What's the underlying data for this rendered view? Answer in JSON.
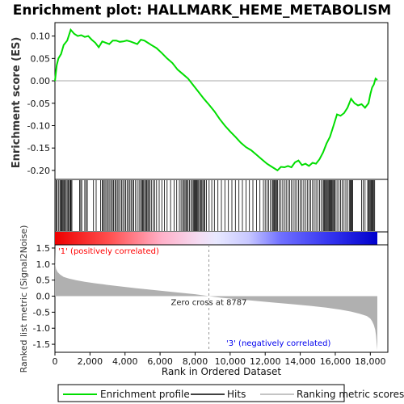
{
  "chart_data": {
    "type": "line",
    "title": "Enrichment plot: HALLMARK_HEME_METABOLISM",
    "es_panel": {
      "ylabel": "Enrichment score (ES)",
      "ylim": [
        -0.22,
        0.13
      ],
      "yticks": [
        0.1,
        0.05,
        0.0,
        -0.05,
        -0.1,
        -0.15,
        -0.2
      ],
      "ytick_labels": [
        "0.10",
        "0.05",
        "0.00",
        "-0.05",
        "-0.10",
        "-0.15",
        "-0.20"
      ],
      "line_color": "#00dd00",
      "series": [
        {
          "name": "Enrichment profile",
          "x": [
            0,
            100,
            200,
            350,
            500,
            700,
            900,
            1100,
            1300,
            1500,
            1700,
            1900,
            2100,
            2300,
            2500,
            2700,
            2900,
            3100,
            3300,
            3500,
            3700,
            3900,
            4100,
            4300,
            4500,
            4700,
            4900,
            5100,
            5300,
            5500,
            5800,
            6100,
            6400,
            6700,
            7000,
            7300,
            7600,
            7900,
            8200,
            8500,
            8787,
            9100,
            9400,
            9700,
            10000,
            10300,
            10600,
            10900,
            11200,
            11500,
            11800,
            12100,
            12300,
            12500,
            12700,
            12900,
            13100,
            13300,
            13500,
            13700,
            13900,
            14100,
            14300,
            14500,
            14700,
            14900,
            15100,
            15300,
            15500,
            15700,
            15900,
            16100,
            16300,
            16500,
            16700,
            16900,
            17100,
            17300,
            17500,
            17700,
            17900,
            18000,
            18100,
            18200,
            18300,
            18400
          ],
          "y": [
            0.0,
            0.035,
            0.05,
            0.06,
            0.08,
            0.09,
            0.114,
            0.105,
            0.1,
            0.102,
            0.098,
            0.1,
            0.092,
            0.085,
            0.075,
            0.088,
            0.085,
            0.082,
            0.09,
            0.09,
            0.087,
            0.088,
            0.09,
            0.088,
            0.085,
            0.082,
            0.092,
            0.09,
            0.085,
            0.08,
            0.073,
            0.062,
            0.05,
            0.04,
            0.025,
            0.015,
            0.005,
            -0.01,
            -0.025,
            -0.04,
            -0.053,
            -0.068,
            -0.085,
            -0.1,
            -0.113,
            -0.125,
            -0.138,
            -0.148,
            -0.155,
            -0.165,
            -0.175,
            -0.185,
            -0.19,
            -0.195,
            -0.2,
            -0.192,
            -0.193,
            -0.19,
            -0.193,
            -0.182,
            -0.178,
            -0.188,
            -0.185,
            -0.19,
            -0.183,
            -0.185,
            -0.175,
            -0.16,
            -0.14,
            -0.125,
            -0.1,
            -0.075,
            -0.078,
            -0.072,
            -0.06,
            -0.04,
            -0.05,
            -0.055,
            -0.052,
            -0.06,
            -0.05,
            -0.03,
            -0.015,
            -0.008,
            0.005,
            0.002
          ]
        }
      ]
    },
    "hits_panel": {
      "legend_label": "Hits",
      "hit_ranks": [
        60,
        120,
        200,
        280,
        330,
        380,
        420,
        470,
        520,
        570,
        640,
        700,
        760,
        820,
        880,
        920,
        970,
        1400,
        1470,
        1530,
        1700,
        1780,
        1850,
        2200,
        2350,
        2600,
        2700,
        2760,
        2820,
        2900,
        2980,
        3050,
        3130,
        3200,
        3280,
        3350,
        3420,
        3480,
        3560,
        3640,
        3720,
        3800,
        3880,
        3960,
        4040,
        4120,
        4200,
        4280,
        4350,
        4430,
        4500,
        4600,
        4700,
        4800,
        4880,
        4960,
        5000,
        5060,
        5120,
        5180,
        5240,
        5300,
        5350,
        5420,
        5500,
        5600,
        5700,
        5800,
        5950,
        6100,
        6250,
        6400,
        6600,
        6800,
        6950,
        7100,
        7200,
        7280,
        7350,
        7420,
        7480,
        7530,
        7600,
        7680,
        7760,
        7840,
        7900,
        7950,
        8000,
        8050,
        8100,
        8150,
        8200,
        8260,
        8320,
        8380,
        8440,
        8500,
        8560,
        8640,
        8800,
        8950,
        9100,
        9300,
        9500,
        9700,
        9900,
        10100,
        10300,
        10500,
        10700,
        10900,
        11100,
        11300,
        11500,
        11700,
        11900,
        12000,
        12100,
        12200,
        12300,
        12400,
        12450,
        12500,
        12550,
        12600,
        12650,
        12700,
        12800,
        12900,
        13000,
        13100,
        13200,
        13300,
        13400,
        13500,
        13600,
        13700,
        13800,
        13900,
        14000,
        14100,
        14200,
        14300,
        14400,
        14500,
        14600,
        14700,
        14800,
        14900,
        15000,
        15100,
        15200,
        15300,
        15350,
        15400,
        15450,
        15500,
        15550,
        15600,
        15650,
        15700,
        15750,
        15800,
        15850,
        15900,
        15950,
        16000,
        16100,
        16200,
        16300,
        16400,
        16500,
        16600,
        16700,
        16800,
        16850,
        16900,
        16950,
        17000,
        17500,
        17600,
        17700,
        17850,
        17900,
        17950,
        18000,
        18050,
        18100,
        18150,
        18200,
        18250
      ]
    },
    "metric_panel": {
      "ylabel": "Ranked list metric (Signal2Noise)",
      "ylim": [
        -1.75,
        1.6
      ],
      "yticks": [
        1.5,
        1.0,
        0.5,
        0.0,
        -0.5,
        -1.0,
        -1.5
      ],
      "ytick_labels": [
        "1.5",
        "1.0",
        "0.5",
        "0.0",
        "-0.5",
        "-1.0",
        "-1.5"
      ],
      "fill_color": "#b0b0b0",
      "series": [
        {
          "name": "Ranking metric scores",
          "x": [
            0,
            20,
            60,
            150,
            300,
            500,
            800,
            1200,
            1700,
            2300,
            3000,
            3800,
            4600,
            5500,
            6400,
            7300,
            8000,
            8787,
            9500,
            10500,
            11500,
            12500,
            13500,
            14500,
            15500,
            16300,
            16900,
            17400,
            17800,
            18000,
            18100,
            18200,
            18280,
            18330,
            18370,
            18400
          ],
          "y": [
            1.5,
            1.0,
            0.85,
            0.75,
            0.67,
            0.6,
            0.55,
            0.5,
            0.45,
            0.4,
            0.35,
            0.3,
            0.25,
            0.2,
            0.15,
            0.1,
            0.06,
            0.0,
            -0.05,
            -0.1,
            -0.15,
            -0.2,
            -0.25,
            -0.3,
            -0.36,
            -0.42,
            -0.48,
            -0.55,
            -0.62,
            -0.7,
            -0.78,
            -0.9,
            -1.05,
            -1.25,
            -1.5,
            -1.68
          ]
        }
      ],
      "zero_cross_label": "Zero cross at 8787",
      "zero_cross_rank": 8787,
      "pos_label": "'1' (positively correlated)",
      "neg_label": "'3' (negatively correlated)",
      "pos_color": "#ff0000",
      "neg_color": "#0000ee"
    },
    "xaxis": {
      "xlabel": "Rank in Ordered Dataset",
      "xlim": [
        0,
        19000
      ],
      "xticks": [
        0,
        2000,
        4000,
        6000,
        8000,
        10000,
        12000,
        14000,
        16000,
        18000
      ],
      "xtick_labels": [
        "0",
        "2,000",
        "4,000",
        "6,000",
        "8,000",
        "10,000",
        "12,000",
        "14,000",
        "16,000",
        "18,000"
      ],
      "n_genes": 18400
    },
    "legend": {
      "items": [
        "Enrichment profile",
        "Hits",
        "Ranking metric scores"
      ],
      "placement": "bottom"
    }
  }
}
